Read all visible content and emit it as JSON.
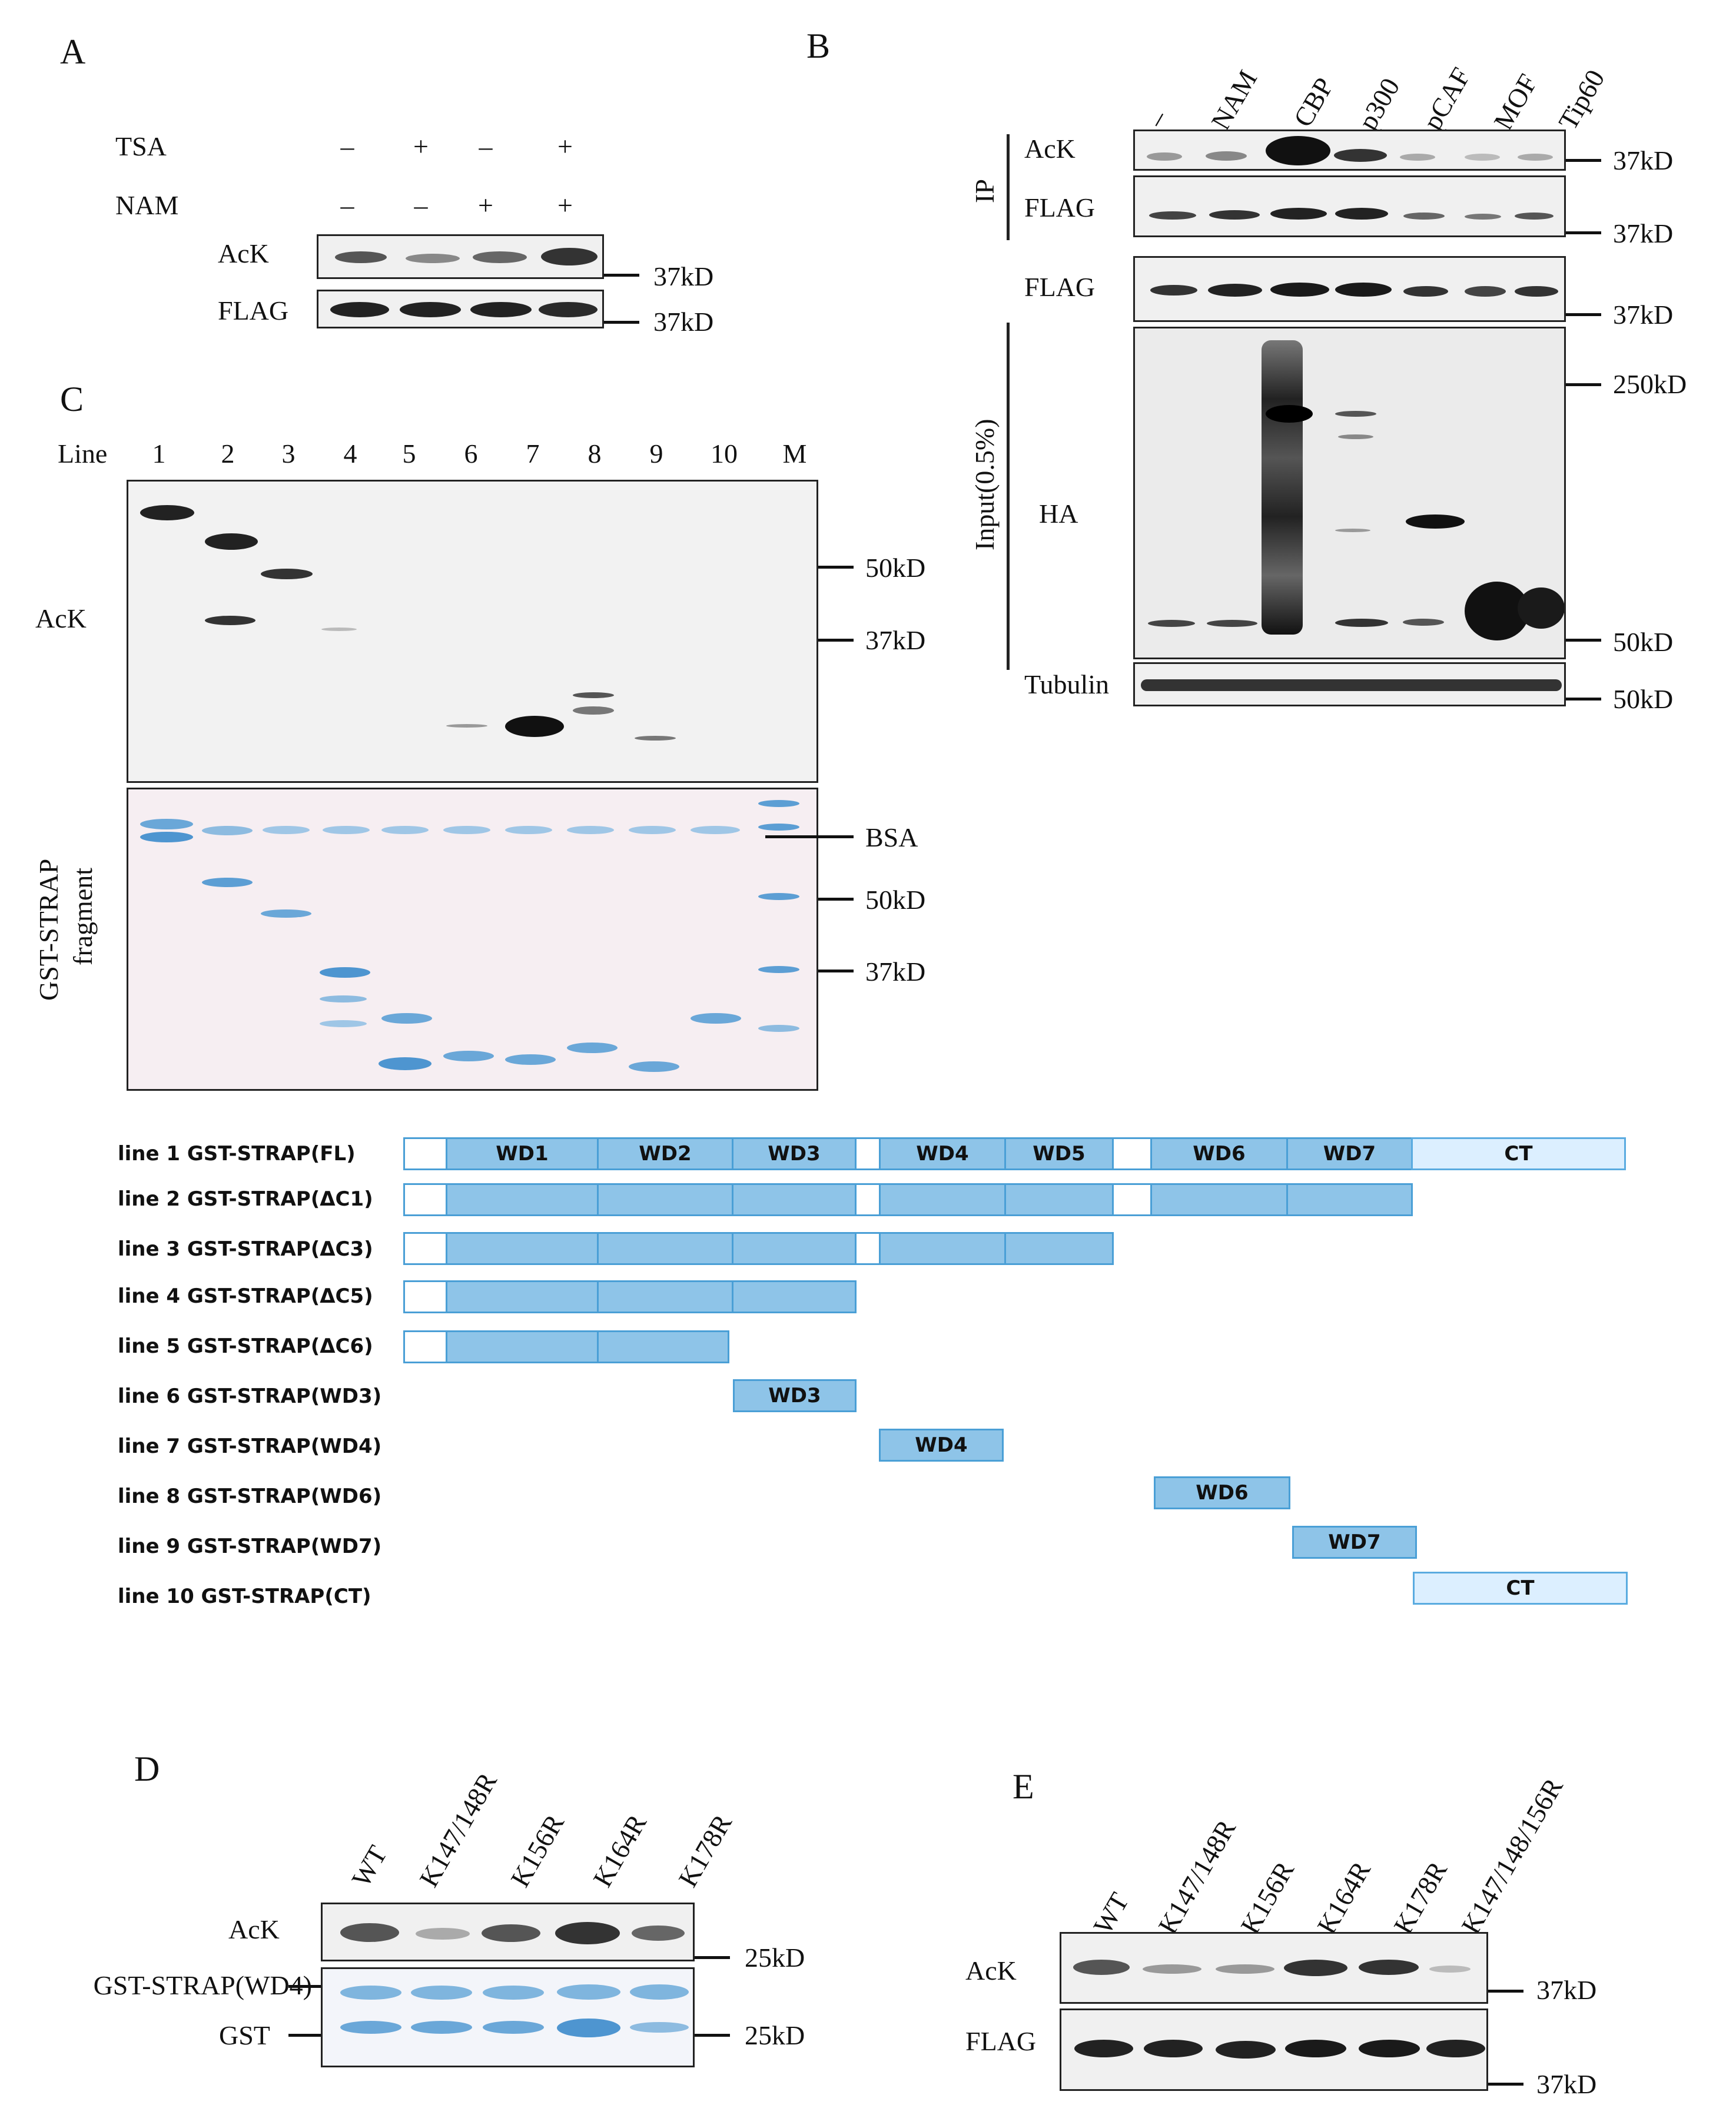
{
  "panels": {
    "A": "A",
    "B": "B",
    "C": "C",
    "D": "D",
    "E": "E"
  },
  "panelA": {
    "row_labels": {
      "tsa": "TSA",
      "nam": "NAM"
    },
    "tsa_signs": [
      "–",
      "+",
      "–",
      "+"
    ],
    "nam_signs": [
      "–",
      "–",
      "+",
      "+"
    ],
    "blot_labels": {
      "ack": "AcK",
      "flag": "FLAG"
    },
    "markers": [
      "37kD",
      "37kD"
    ]
  },
  "panelB": {
    "lanes": [
      "–",
      "NAM",
      "CBP",
      "p300",
      "pCAF",
      "MOF",
      "Tip60"
    ],
    "ip_label": "IP",
    "input_label": "Input(0.5%)",
    "blot_labels": {
      "ack": "AcK",
      "flag_ip": "FLAG",
      "flag_in": "FLAG",
      "ha": "HA",
      "tubulin": "Tubulin"
    },
    "markers": {
      "ack": "37kD",
      "flag_ip": "37kD",
      "flag_in": "37kD",
      "ha_top": "250kD",
      "ha_bottom": "50kD",
      "tubulin": "50kD"
    }
  },
  "panelC": {
    "line_header": "Line",
    "lanes": [
      "1",
      "2",
      "3",
      "4",
      "5",
      "6",
      "7",
      "8",
      "9",
      "10",
      "M"
    ],
    "blot_label": "AcK",
    "gel_label_1": "GST-STRAP",
    "gel_label_2": "fragment",
    "blot_markers": [
      "50kD",
      "37kD"
    ],
    "gel_markers": [
      "BSA",
      "50kD",
      "37kD"
    ]
  },
  "schema": {
    "lines": [
      "line 1  GST-STRAP(FL)",
      "line 2  GST-STRAP(ΔC1)",
      "line 3  GST-STRAP(ΔC3)",
      "line 4  GST-STRAP(ΔC5)",
      "line 5  GST-STRAP(ΔC6)",
      "line 6  GST-STRAP(WD3)",
      "line 7  GST-STRAP(WD4)",
      "line 8  GST-STRAP(WD6)",
      "line 9  GST-STRAP(WD7)",
      "line 10  GST-STRAP(CT)"
    ],
    "domains": {
      "wd1": "WD1",
      "wd2": "WD2",
      "wd3": "WD3",
      "wd4": "WD4",
      "wd5": "WD5",
      "wd6": "WD6",
      "wd7": "WD7",
      "ct": "CT"
    },
    "colors": {
      "domain_fill": "#8ec4e8",
      "domain_border": "#4a9fd6",
      "ct_fill": "#dcefff"
    }
  },
  "panelD": {
    "lanes": [
      "WT",
      "K147/148R",
      "K156R",
      "K164R",
      "K178R"
    ],
    "blot_label": "AcK",
    "gel_label_1": "GST-STRAP(WD4)",
    "gel_label_2": "GST",
    "markers": [
      "25kD",
      "25kD"
    ]
  },
  "panelE": {
    "lanes": [
      "WT",
      "K147/148R",
      "K156R",
      "K164R",
      "K178R",
      "K147/148/156R"
    ],
    "blot_labels": {
      "ack": "AcK",
      "flag": "FLAG"
    },
    "markers": [
      "37kD",
      "37kD"
    ]
  }
}
